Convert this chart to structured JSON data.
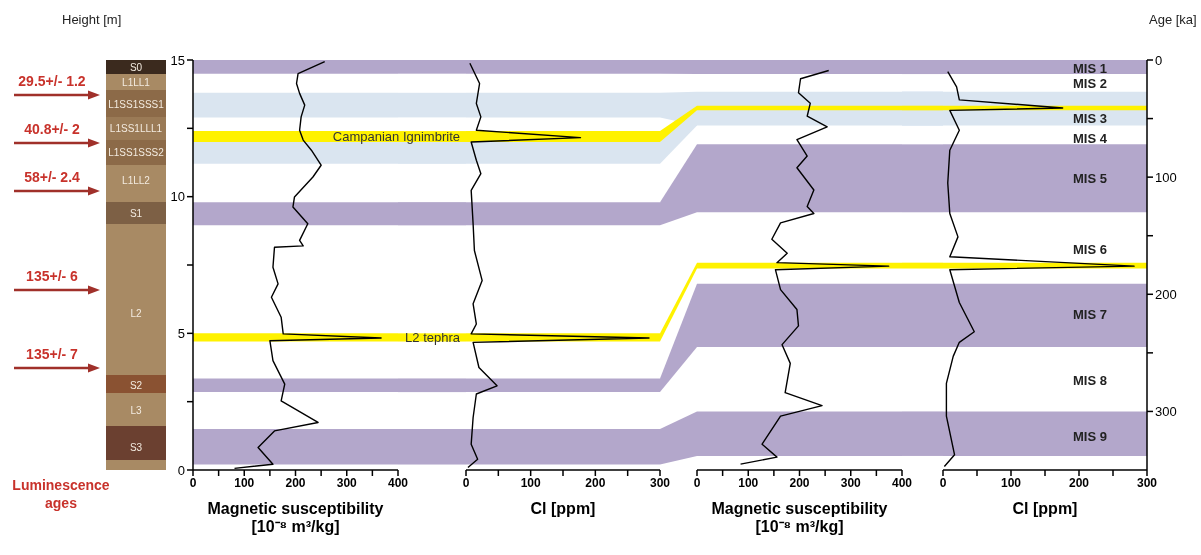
{
  "chart_data": [
    {
      "type": "line",
      "xlabel": "Magnetic susceptibility [10⁻⁸ m³/kg]",
      "ylabel": "Height [m]",
      "xlim": [
        0,
        400
      ],
      "xticks": [
        0,
        {
          "value": 50,
          "label": null
        },
        100,
        {
          "value": 150,
          "label": null
        },
        200,
        {
          "value": 250,
          "label": null
        },
        300,
        {
          "value": 350,
          "label": null
        },
        400
      ],
      "ylim": [
        0,
        15
      ],
      "yticks": [
        0,
        {
          "value": 2.5,
          "label": null
        },
        5,
        {
          "value": 7.5,
          "label": null
        },
        10,
        {
          "value": 12.5,
          "label": null
        },
        15
      ],
      "series": [
        {
          "color": "#000000",
          "x": [
            257,
            205,
            202,
            208,
            218,
            211,
            208,
            215,
            231,
            250,
            234,
            198,
            195,
            224,
            208,
            215,
            159,
            156,
            166,
            153,
            172,
            176,
            367,
            150,
            156,
            179,
            172,
            244,
            159,
            127,
            156,
            81
          ],
          "values": [
            14.94,
            14.5,
            14.14,
            13.78,
            13.35,
            12.92,
            12.43,
            12.07,
            11.7,
            11.15,
            10.72,
            9.99,
            9.62,
            9.01,
            8.4,
            8.2,
            8.15,
            7.42,
            6.81,
            6.32,
            5.59,
            4.98,
            4.83,
            4.73,
            4.0,
            3.14,
            2.53,
            1.74,
            1.43,
            0.82,
            0.21,
            0.06
          ]
        }
      ],
      "bands": [
        {
          "axis": "y",
          "from": 14.5,
          "to": 15,
          "color": "#b3a7cb"
        },
        {
          "axis": "y",
          "from": 12.9,
          "to": 13.8,
          "color": "#dae5f0"
        },
        {
          "axis": "y",
          "from": 12.0,
          "to": 12.4,
          "color": "#fff200",
          "label": "Campanian Ignimbrite"
        },
        {
          "axis": "y",
          "from": 11.2,
          "to": 12.0,
          "color": "#dae5f0"
        },
        {
          "axis": "y",
          "from": 8.95,
          "to": 9.8,
          "color": "#b3a7cb"
        },
        {
          "axis": "y",
          "from": 4.7,
          "to": 5.0,
          "color": "#fff200",
          "label": "L2 tephra"
        },
        {
          "axis": "y",
          "from": 2.85,
          "to": 3.35,
          "color": "#b3a7cb"
        },
        {
          "axis": "y",
          "from": 0.2,
          "to": 1.5,
          "color": "#b3a7cb"
        }
      ],
      "annotations": [
        "S0",
        "L1LL1",
        "L1SS1SSS1",
        "L1SS1LLL1",
        "L1SS1SSS2",
        "L1LL2",
        "S1",
        "L2",
        "S2",
        "L3",
        "S3",
        "29.5+/- 1.2",
        "40.8+/- 2",
        "58+/- 2.4",
        "135+/- 6",
        "135+/- 7",
        "Luminescence ages"
      ]
    },
    {
      "type": "line",
      "xlabel": "Cl [ppm]",
      "xlim": [
        0,
        300
      ],
      "xticks": [
        0,
        {
          "value": 50,
          "label": null
        },
        100,
        {
          "value": 150,
          "label": null
        },
        200,
        {
          "value": 250,
          "label": null
        },
        300
      ],
      "ylim": [
        0,
        15
      ],
      "tick_labels": "x",
      "series": [
        {
          "color": "#000000",
          "x": [
            6,
            21,
            16,
            23,
            16,
            177,
            8,
            16,
            23,
            8,
            11,
            13,
            25,
            11,
            16,
            8,
            283,
            11,
            20,
            48,
            16,
            11,
            8,
            18,
            3
          ],
          "values": [
            14.88,
            14.14,
            13.41,
            12.92,
            12.43,
            12.16,
            12.0,
            11.33,
            10.84,
            10.23,
            9.0,
            8.03,
            6.93,
            6.08,
            5.34,
            4.98,
            4.83,
            4.67,
            3.75,
            3.08,
            2.78,
            1.92,
            0.94,
            0.39,
            0.09
          ]
        }
      ],
      "bands": [
        {
          "axis": "y",
          "from": 14.5,
          "to": 15,
          "color": "#b3a7cb"
        },
        {
          "axis": "y",
          "from": 12.9,
          "to": 13.8,
          "color": "#dae5f0"
        },
        {
          "axis": "y",
          "from": 12.0,
          "to": 12.4,
          "color": "#fff200"
        },
        {
          "axis": "y",
          "from": 11.2,
          "to": 12.0,
          "color": "#dae5f0"
        },
        {
          "axis": "y",
          "from": 8.95,
          "to": 9.8,
          "color": "#b3a7cb"
        },
        {
          "axis": "y",
          "from": 4.7,
          "to": 5.0,
          "color": "#fff200"
        },
        {
          "axis": "y",
          "from": 2.85,
          "to": 3.35,
          "color": "#b3a7cb"
        },
        {
          "axis": "y",
          "from": 0.2,
          "to": 1.5,
          "color": "#b3a7cb"
        }
      ]
    },
    {
      "type": "line",
      "xlabel": "Magnetic susceptibility [10⁻⁸ m³/kg]",
      "xlim": [
        0,
        400
      ],
      "xticks": [
        0,
        {
          "value": 50,
          "label": null
        },
        100,
        {
          "value": 150,
          "label": null
        },
        200,
        {
          "value": 250,
          "label": null
        },
        300,
        {
          "value": 350,
          "label": null
        },
        400
      ],
      "ylim": [
        350,
        0
      ],
      "tick_labels": "x",
      "series": [
        {
          "color": "#000000",
          "x": [
            257,
            202,
            198,
            221,
            215,
            254,
            195,
            215,
            195,
            228,
            215,
            228,
            163,
            146,
            176,
            156,
            374,
            153,
            163,
            195,
            198,
            166,
            182,
            172,
            244,
            163,
            127,
            156,
            85
          ],
          "values": [
            9,
            16,
            28,
            37,
            48,
            57,
            68,
            82,
            92,
            111,
            125,
            131,
            139,
            153,
            165,
            173,
            176,
            179,
            196,
            213,
            227,
            243,
            259,
            284,
            295,
            304,
            328,
            339,
            345
          ]
        }
      ],
      "bands": [
        {
          "axis": "y",
          "from": 0,
          "to": 12,
          "color": "#b3a7cb"
        },
        {
          "axis": "y",
          "from": 27,
          "to": 56,
          "color": "#dae5f0"
        },
        {
          "axis": "y",
          "from": 39,
          "to": 43,
          "color": "#fff200"
        },
        {
          "axis": "y",
          "from": 72,
          "to": 130,
          "color": "#b3a7cb"
        },
        {
          "axis": "y",
          "from": 173,
          "to": 178,
          "color": "#fff200"
        },
        {
          "axis": "y",
          "from": 191,
          "to": 245,
          "color": "#b3a7cb"
        },
        {
          "axis": "y",
          "from": 300,
          "to": 338,
          "color": "#b3a7cb"
        }
      ]
    },
    {
      "type": "line",
      "xlabel": "Cl [ppm]",
      "ylabel": "Age [ka]",
      "xlim": [
        0,
        300
      ],
      "xticks": [
        0,
        {
          "value": 50,
          "label": null
        },
        100,
        {
          "value": 150,
          "label": null
        },
        200,
        {
          "value": 250,
          "label": null
        },
        300
      ],
      "ylim": [
        350,
        0
      ],
      "yticks": [
        0,
        {
          "value": 50,
          "label": null
        },
        100,
        {
          "value": 150,
          "label": null
        },
        200,
        {
          "value": 250,
          "label": null
        },
        300
      ],
      "series": [
        {
          "color": "#000000",
          "x": [
            7,
            20,
            24,
            176,
            10,
            24,
            10,
            7,
            10,
            22,
            10,
            281,
            10,
            24,
            46,
            24,
            15,
            5,
            5,
            17,
            2
          ],
          "values": [
            10,
            23,
            34,
            41,
            43,
            60,
            77,
            105,
            131,
            151,
            168,
            176,
            179,
            207,
            232,
            241,
            253,
            276,
            304,
            337,
            347
          ]
        }
      ],
      "bands": [
        {
          "axis": "y",
          "from": 0,
          "to": 12,
          "color": "#b3a7cb"
        },
        {
          "axis": "y",
          "from": 27,
          "to": 56,
          "color": "#dae5f0"
        },
        {
          "axis": "y",
          "from": 39,
          "to": 43,
          "color": "#fff200"
        },
        {
          "axis": "y",
          "from": 72,
          "to": 130,
          "color": "#b3a7cb"
        },
        {
          "axis": "y",
          "from": 173,
          "to": 178,
          "color": "#fff200"
        },
        {
          "axis": "y",
          "from": 191,
          "to": 245,
          "color": "#b3a7cb"
        },
        {
          "axis": "y",
          "from": 300,
          "to": 338,
          "color": "#b3a7cb"
        }
      ],
      "annotations": [
        "MIS 1",
        "MIS 2",
        "MIS 3",
        "MIS 4",
        "MIS 5",
        "MIS 6",
        "MIS 7",
        "MIS 8",
        "MIS 9"
      ]
    }
  ]
}
